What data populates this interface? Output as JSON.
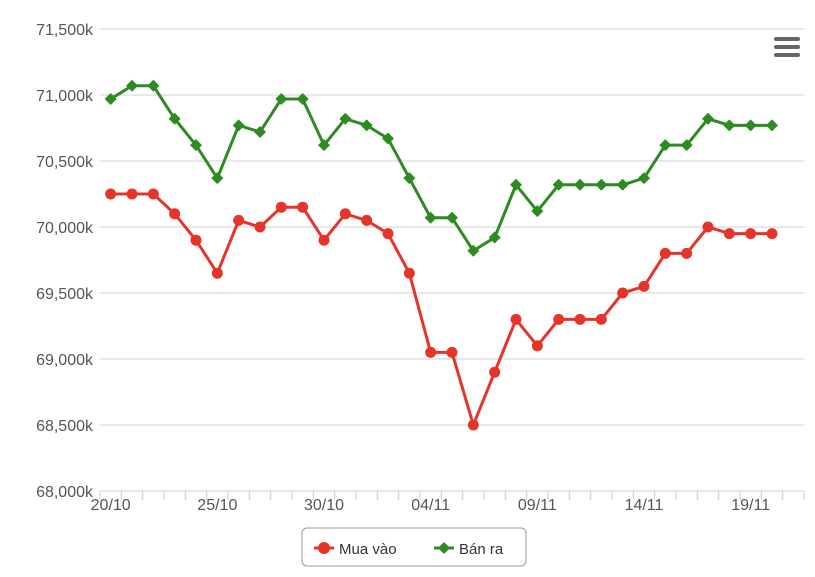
{
  "chart_data": {
    "type": "line",
    "title": "",
    "xlabel": "",
    "ylabel": "",
    "x": [
      "20/10",
      "21/10",
      "22/10",
      "23/10",
      "24/10",
      "25/10",
      "26/10",
      "27/10",
      "28/10",
      "29/10",
      "30/10",
      "31/10",
      "01/11",
      "02/11",
      "03/11",
      "04/11",
      "05/11",
      "06/11",
      "07/11",
      "08/11",
      "09/11",
      "10/11",
      "11/11",
      "12/11",
      "13/11",
      "14/11",
      "15/11",
      "16/11",
      "17/11",
      "18/11",
      "19/11",
      "20/11",
      "21/11"
    ],
    "x_tick_labels": [
      {
        "index": 0,
        "label": "20/10"
      },
      {
        "index": 5,
        "label": "25/10"
      },
      {
        "index": 10,
        "label": "30/10"
      },
      {
        "index": 15,
        "label": "04/11"
      },
      {
        "index": 20,
        "label": "09/11"
      },
      {
        "index": 25,
        "label": "14/11"
      },
      {
        "index": 30,
        "label": "19/11"
      }
    ],
    "y_ticks": [
      {
        "value": 68000,
        "label": "68,000k"
      },
      {
        "value": 68500,
        "label": "68,500k"
      },
      {
        "value": 69000,
        "label": "69,000k"
      },
      {
        "value": 69500,
        "label": "69,500k"
      },
      {
        "value": 70000,
        "label": "70,000k"
      },
      {
        "value": 70500,
        "label": "70,500k"
      },
      {
        "value": 71000,
        "label": "71,000k"
      },
      {
        "value": 71500,
        "label": "71,500k"
      }
    ],
    "ylim": [
      68000,
      71500
    ],
    "grid": true,
    "legend_position": "bottom-center",
    "series": [
      {
        "name": "Mua vào",
        "color": "#e5352b",
        "marker": "circle",
        "values": [
          70250,
          70250,
          70250,
          70100,
          69900,
          69650,
          70050,
          70000,
          70150,
          70150,
          69900,
          70100,
          70050,
          69950,
          69650,
          69050,
          69050,
          68500,
          68900,
          69300,
          69100,
          69300,
          69300,
          69300,
          69500,
          69550,
          69800,
          69800,
          70000,
          69950,
          69950,
          69950,
          null
        ]
      },
      {
        "name": "Bán ra",
        "color": "#2e8b22",
        "marker": "diamond",
        "values": [
          70970,
          71070,
          71070,
          70820,
          70620,
          70370,
          70770,
          70720,
          70970,
          70970,
          70620,
          70820,
          70770,
          70670,
          70370,
          70070,
          70070,
          69820,
          69920,
          70320,
          70120,
          70320,
          70320,
          70320,
          70320,
          70370,
          70620,
          70620,
          70820,
          70770,
          70770,
          70770,
          null
        ]
      }
    ]
  },
  "menu": {
    "icon": "hamburger-icon"
  }
}
